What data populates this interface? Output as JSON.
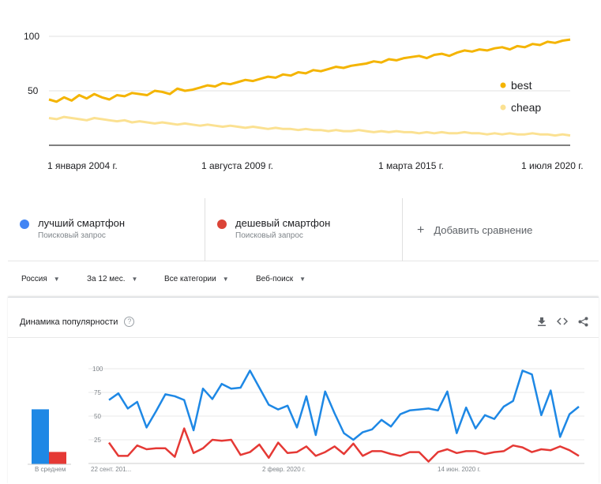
{
  "top_chart": {
    "chart_data": {
      "type": "line",
      "x_ticks": [
        "1 января 2004 г.",
        "1 августа 2009 г.",
        "1 марта 2015 г.",
        "1 июля 2020 г."
      ],
      "y_ticks": [
        100,
        50
      ],
      "ylim": [
        0,
        100
      ],
      "legend_position": "right",
      "series": [
        {
          "name": "best",
          "color": "#f4b400",
          "values": [
            42,
            40,
            44,
            41,
            46,
            43,
            47,
            44,
            42,
            46,
            45,
            48,
            47,
            46,
            50,
            49,
            47,
            52,
            50,
            51,
            53,
            55,
            54,
            57,
            56,
            58,
            60,
            59,
            61,
            63,
            62,
            65,
            64,
            67,
            66,
            69,
            68,
            70,
            72,
            71,
            73,
            74,
            75,
            77,
            76,
            79,
            78,
            80,
            81,
            82,
            80,
            83,
            84,
            82,
            85,
            87,
            86,
            88,
            87,
            89,
            90,
            88,
            91,
            90,
            93,
            92,
            95,
            94,
            96,
            97
          ]
        },
        {
          "name": "cheap",
          "color": "#fbe192",
          "values": [
            25,
            24,
            26,
            25,
            24,
            23,
            25,
            24,
            23,
            22,
            23,
            21,
            22,
            21,
            20,
            21,
            20,
            19,
            20,
            19,
            18,
            19,
            18,
            17,
            18,
            17,
            16,
            17,
            16,
            15,
            16,
            15,
            15,
            14,
            15,
            14,
            14,
            13,
            14,
            13,
            13,
            14,
            13,
            12,
            13,
            12,
            13,
            12,
            12,
            11,
            12,
            11,
            12,
            11,
            11,
            12,
            11,
            11,
            10,
            11,
            10,
            11,
            10,
            10,
            11,
            10,
            10,
            9,
            10,
            9
          ]
        }
      ]
    }
  },
  "compare": {
    "term1": {
      "name": "лучший смартфон",
      "sub": "Поисковый запрос",
      "color": "#4285f4"
    },
    "term2": {
      "name": "дешевый смартфон",
      "sub": "Поисковый запрос",
      "color": "#db4437"
    },
    "add_label": "Добавить сравнение"
  },
  "filters": {
    "region": "Россия",
    "period": "За 12 мес.",
    "category": "Все категории",
    "search_type": "Веб-поиск"
  },
  "bottom": {
    "title": "Динамика популярности",
    "help": "?",
    "avg_label": "В среднем",
    "chart_data": {
      "type": "line",
      "y_ticks": [
        100,
        75,
        50,
        25
      ],
      "ylim": [
        0,
        100
      ],
      "x_ticks": [
        "22 сент. 201...",
        "2 февр. 2020 г.",
        "14 июн. 2020 г."
      ],
      "averages": [
        {
          "color": "#4285f4",
          "value": 58
        },
        {
          "color": "#db4437",
          "value": 13
        }
      ],
      "series": [
        {
          "name": "лучший смартфон",
          "color": "#1e88e5",
          "values": [
            67,
            74,
            58,
            65,
            38,
            55,
            73,
            71,
            67,
            35,
            79,
            68,
            84,
            79,
            80,
            98,
            80,
            62,
            57,
            61,
            38,
            71,
            30,
            76,
            53,
            32,
            25,
            33,
            36,
            46,
            39,
            52,
            56,
            57,
            58,
            56,
            76,
            32,
            59,
            37,
            51,
            47,
            60,
            66,
            98,
            94,
            51,
            77,
            28,
            52,
            60
          ]
        },
        {
          "name": "дешевый смартфон",
          "color": "#e53935",
          "values": [
            22,
            8,
            8,
            19,
            15,
            16,
            16,
            7,
            37,
            11,
            16,
            25,
            24,
            25,
            9,
            12,
            20,
            6,
            22,
            11,
            12,
            18,
            8,
            12,
            18,
            10,
            21,
            8,
            13,
            13,
            10,
            8,
            12,
            12,
            2,
            12,
            15,
            11,
            13,
            13,
            10,
            12,
            13,
            19,
            17,
            12,
            15,
            14,
            18,
            14,
            8
          ]
        }
      ]
    }
  },
  "colors": {
    "grid": "#e8e8e8",
    "axis": "#333333"
  },
  "icons": [
    "download-icon",
    "embed-icon",
    "share-icon",
    "plus-icon",
    "help-icon",
    "chevron-down-icon"
  ]
}
